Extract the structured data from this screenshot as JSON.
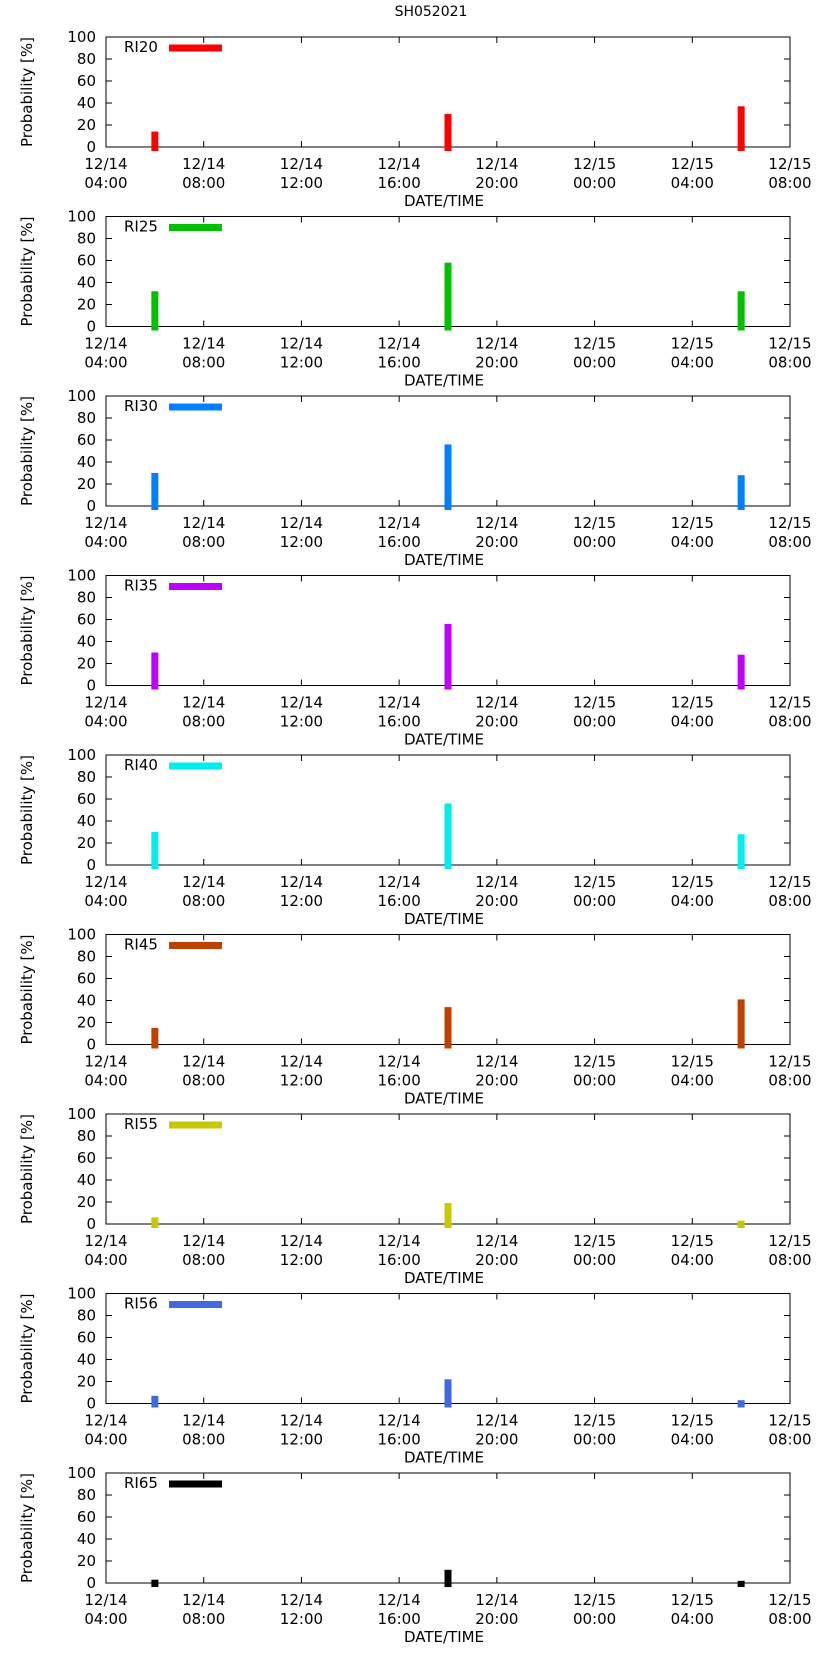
{
  "figure_title": "SH052021",
  "chart_data": [
    {
      "type": "bar",
      "legend": "RI20",
      "color": "#ff0000",
      "x": [
        "12/14 06:00",
        "12/14 18:00",
        "12/15 06:00"
      ],
      "values": [
        14,
        30,
        37
      ],
      "ylabel": "Probability [%]",
      "xlabel": "DATE/TIME",
      "ylim": [
        0,
        100
      ],
      "yticks": [
        "0",
        "20",
        "40",
        "60",
        "80",
        "100"
      ],
      "xticks": [
        [
          "12/14",
          "04:00"
        ],
        [
          "12/14",
          "08:00"
        ],
        [
          "12/14",
          "12:00"
        ],
        [
          "12/14",
          "16:00"
        ],
        [
          "12/14",
          "20:00"
        ],
        [
          "12/15",
          "00:00"
        ],
        [
          "12/15",
          "04:00"
        ],
        [
          "12/15",
          "08:00"
        ]
      ]
    },
    {
      "type": "bar",
      "legend": "RI25",
      "color": "#00c000",
      "x": [
        "12/14 06:00",
        "12/14 18:00",
        "12/15 06:00"
      ],
      "values": [
        32,
        58,
        32
      ],
      "ylabel": "Probability [%]",
      "xlabel": "DATE/TIME",
      "ylim": [
        0,
        100
      ],
      "yticks": [
        "0",
        "20",
        "40",
        "60",
        "80",
        "100"
      ],
      "xticks": [
        [
          "12/14",
          "04:00"
        ],
        [
          "12/14",
          "08:00"
        ],
        [
          "12/14",
          "12:00"
        ],
        [
          "12/14",
          "16:00"
        ],
        [
          "12/14",
          "20:00"
        ],
        [
          "12/15",
          "00:00"
        ],
        [
          "12/15",
          "04:00"
        ],
        [
          "12/15",
          "08:00"
        ]
      ]
    },
    {
      "type": "bar",
      "legend": "RI30",
      "color": "#0080ff",
      "x": [
        "12/14 06:00",
        "12/14 18:00",
        "12/15 06:00"
      ],
      "values": [
        30,
        56,
        28
      ],
      "ylabel": "Probability [%]",
      "xlabel": "DATE/TIME",
      "ylim": [
        0,
        100
      ],
      "yticks": [
        "0",
        "20",
        "40",
        "60",
        "80",
        "100"
      ],
      "xticks": [
        [
          "12/14",
          "04:00"
        ],
        [
          "12/14",
          "08:00"
        ],
        [
          "12/14",
          "12:00"
        ],
        [
          "12/14",
          "16:00"
        ],
        [
          "12/14",
          "20:00"
        ],
        [
          "12/15",
          "00:00"
        ],
        [
          "12/15",
          "04:00"
        ],
        [
          "12/15",
          "08:00"
        ]
      ]
    },
    {
      "type": "bar",
      "legend": "RI35",
      "color": "#c000ff",
      "x": [
        "12/14 06:00",
        "12/14 18:00",
        "12/15 06:00"
      ],
      "values": [
        30,
        56,
        28
      ],
      "ylabel": "Probability [%]",
      "xlabel": "DATE/TIME",
      "ylim": [
        0,
        100
      ],
      "yticks": [
        "0",
        "20",
        "40",
        "60",
        "80",
        "100"
      ],
      "xticks": [
        [
          "12/14",
          "04:00"
        ],
        [
          "12/14",
          "08:00"
        ],
        [
          "12/14",
          "12:00"
        ],
        [
          "12/14",
          "16:00"
        ],
        [
          "12/14",
          "20:00"
        ],
        [
          "12/15",
          "00:00"
        ],
        [
          "12/15",
          "04:00"
        ],
        [
          "12/15",
          "08:00"
        ]
      ]
    },
    {
      "type": "bar",
      "legend": "RI40",
      "color": "#00eeee",
      "x": [
        "12/14 06:00",
        "12/14 18:00",
        "12/15 06:00"
      ],
      "values": [
        30,
        56,
        28
      ],
      "ylabel": "Probability [%]",
      "xlabel": "DATE/TIME",
      "ylim": [
        0,
        100
      ],
      "yticks": [
        "0",
        "20",
        "40",
        "60",
        "80",
        "100"
      ],
      "xticks": [
        [
          "12/14",
          "04:00"
        ],
        [
          "12/14",
          "08:00"
        ],
        [
          "12/14",
          "12:00"
        ],
        [
          "12/14",
          "16:00"
        ],
        [
          "12/14",
          "20:00"
        ],
        [
          "12/15",
          "00:00"
        ],
        [
          "12/15",
          "04:00"
        ],
        [
          "12/15",
          "08:00"
        ]
      ]
    },
    {
      "type": "bar",
      "legend": "RI45",
      "color": "#c04000",
      "x": [
        "12/14 06:00",
        "12/14 18:00",
        "12/15 06:00"
      ],
      "values": [
        15,
        34,
        41
      ],
      "ylabel": "Probability [%]",
      "xlabel": "DATE/TIME",
      "ylim": [
        0,
        100
      ],
      "yticks": [
        "0",
        "20",
        "40",
        "60",
        "80",
        "100"
      ],
      "xticks": [
        [
          "12/14",
          "04:00"
        ],
        [
          "12/14",
          "08:00"
        ],
        [
          "12/14",
          "12:00"
        ],
        [
          "12/14",
          "16:00"
        ],
        [
          "12/14",
          "20:00"
        ],
        [
          "12/15",
          "00:00"
        ],
        [
          "12/15",
          "04:00"
        ],
        [
          "12/15",
          "08:00"
        ]
      ]
    },
    {
      "type": "bar",
      "legend": "RI55",
      "color": "#c8c800",
      "x": [
        "12/14 06:00",
        "12/14 18:00",
        "12/15 06:00"
      ],
      "values": [
        6,
        19,
        3
      ],
      "ylabel": "Probability [%]",
      "xlabel": "DATE/TIME",
      "ylim": [
        0,
        100
      ],
      "yticks": [
        "0",
        "20",
        "40",
        "60",
        "80",
        "100"
      ],
      "xticks": [
        [
          "12/14",
          "04:00"
        ],
        [
          "12/14",
          "08:00"
        ],
        [
          "12/14",
          "12:00"
        ],
        [
          "12/14",
          "16:00"
        ],
        [
          "12/14",
          "20:00"
        ],
        [
          "12/15",
          "00:00"
        ],
        [
          "12/15",
          "04:00"
        ],
        [
          "12/15",
          "08:00"
        ]
      ]
    },
    {
      "type": "bar",
      "legend": "RI56",
      "color": "#4169e1",
      "x": [
        "12/14 06:00",
        "12/14 18:00",
        "12/15 06:00"
      ],
      "values": [
        7,
        22,
        3
      ],
      "ylabel": "Probability [%]",
      "xlabel": "DATE/TIME",
      "ylim": [
        0,
        100
      ],
      "yticks": [
        "0",
        "20",
        "40",
        "60",
        "80",
        "100"
      ],
      "xticks": [
        [
          "12/14",
          "04:00"
        ],
        [
          "12/14",
          "08:00"
        ],
        [
          "12/14",
          "12:00"
        ],
        [
          "12/14",
          "16:00"
        ],
        [
          "12/14",
          "20:00"
        ],
        [
          "12/15",
          "00:00"
        ],
        [
          "12/15",
          "04:00"
        ],
        [
          "12/15",
          "08:00"
        ]
      ]
    },
    {
      "type": "bar",
      "legend": "RI65",
      "color": "#000000",
      "x": [
        "12/14 06:00",
        "12/14 18:00",
        "12/15 06:00"
      ],
      "values": [
        3,
        12,
        2
      ],
      "ylabel": "Probability [%]",
      "xlabel": "DATE/TIME",
      "ylim": [
        0,
        100
      ],
      "yticks": [
        "0",
        "20",
        "40",
        "60",
        "80",
        "100"
      ],
      "xticks": [
        [
          "12/14",
          "04:00"
        ],
        [
          "12/14",
          "08:00"
        ],
        [
          "12/14",
          "12:00"
        ],
        [
          "12/14",
          "16:00"
        ],
        [
          "12/14",
          "20:00"
        ],
        [
          "12/15",
          "00:00"
        ],
        [
          "12/15",
          "04:00"
        ],
        [
          "12/15",
          "08:00"
        ]
      ]
    }
  ]
}
